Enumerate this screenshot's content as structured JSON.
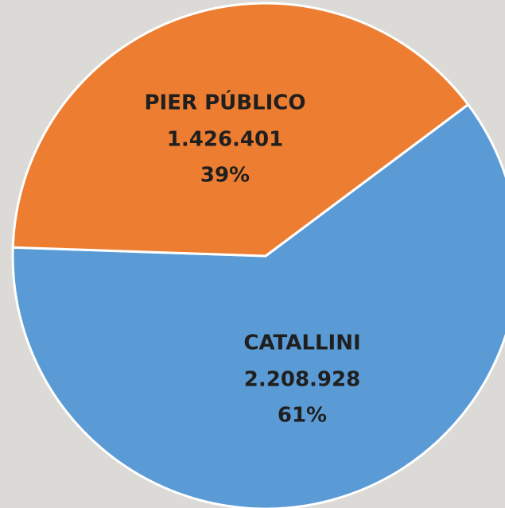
{
  "chart_data": {
    "type": "pie",
    "categories": [
      "CATALLINI",
      "PIER PÚBLICO"
    ],
    "values": [
      2208928,
      1426401
    ],
    "value_labels": [
      "2.208.928",
      "1.426.401"
    ],
    "percent_labels": [
      "61%",
      "39%"
    ],
    "colors": [
      "#5b9bd5",
      "#ed7d31"
    ]
  }
}
